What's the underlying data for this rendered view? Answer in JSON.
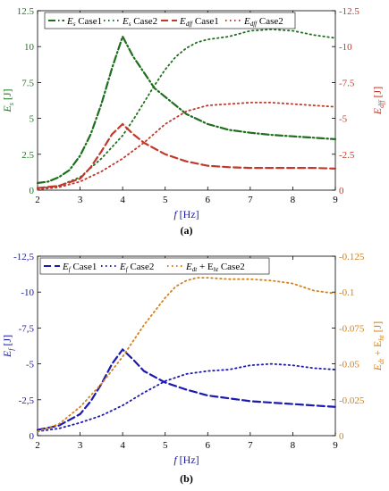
{
  "chart_data": [
    {
      "type": "line",
      "panel_label": "(a)",
      "xlabel": "f [Hz]",
      "xlabel_main": "f",
      "xlabel_unit": "[Hz]",
      "ylabel_left": "E_s [J]",
      "ylabel_left_main": "E",
      "ylabel_left_sub": "s",
      "ylabel_left_unit": "[J]",
      "ylabel_right": "E_dff [J]",
      "ylabel_right_main": "E",
      "ylabel_right_sub": "dff",
      "ylabel_right_unit": "[J]",
      "xlim": [
        2,
        9
      ],
      "ylim_left": [
        0,
        12.5
      ],
      "ylim_right": [
        0,
        -12.5
      ],
      "x_ticks": [
        2,
        3,
        4,
        5,
        6,
        7,
        8,
        9
      ],
      "x_tick_labels": [
        "2",
        "3",
        "4",
        "5",
        "6",
        "7",
        "8",
        "9"
      ],
      "y_left_ticks": [
        0,
        2.5,
        5,
        7.5,
        10,
        12.5
      ],
      "y_left_tick_labels": [
        "0",
        "2.5",
        "5",
        "7.5",
        "10",
        "12.5"
      ],
      "y_right_ticks": [
        0,
        -2.5,
        -5,
        -7.5,
        -10,
        -12.5
      ],
      "y_right_tick_labels": [
        "0",
        "-2.5",
        "-5",
        "-7.5",
        "-10",
        "-12.5"
      ],
      "left_axis_color": "#1a7a1a",
      "right_axis_color": "#c0392b",
      "legend_position": "top",
      "series": [
        {
          "name": "E_s Case1",
          "label_main": "E",
          "label_sub": "s",
          "label_rest": " Case1",
          "axis": "left",
          "color": "#1e6e1e",
          "dash": "dashdot",
          "x": [
            2,
            2.25,
            2.5,
            2.75,
            3,
            3.25,
            3.5,
            3.75,
            4,
            4.25,
            4.5,
            4.75,
            5,
            5.5,
            6,
            6.5,
            7,
            7.5,
            8,
            8.5,
            9
          ],
          "y": [
            0.5,
            0.6,
            0.9,
            1.4,
            2.4,
            3.9,
            6.0,
            8.5,
            10.7,
            9.3,
            8.2,
            7.1,
            6.5,
            5.3,
            4.6,
            4.2,
            4.0,
            3.85,
            3.75,
            3.65,
            3.55
          ]
        },
        {
          "name": "E_s Case2",
          "label_main": "E",
          "label_sub": "s",
          "label_rest": " Case2",
          "axis": "left",
          "color": "#1e6e1e",
          "dash": "dot",
          "x": [
            2,
            2.5,
            3,
            3.5,
            4,
            4.25,
            4.5,
            4.75,
            5,
            5.25,
            5.5,
            5.75,
            6,
            6.5,
            7,
            7.5,
            8,
            8.5,
            9
          ],
          "y": [
            0.1,
            0.3,
            0.9,
            2.2,
            3.8,
            4.9,
            6.1,
            7.3,
            8.4,
            9.3,
            9.9,
            10.3,
            10.5,
            10.7,
            11.1,
            11.2,
            11.1,
            10.8,
            10.6
          ]
        },
        {
          "name": "E_dff Case1",
          "label_main": "E",
          "label_sub": "dff",
          "label_rest": " Case1",
          "axis": "right",
          "color": "#c0392b",
          "dash": "dash",
          "x": [
            2,
            2.5,
            3,
            3.25,
            3.5,
            3.75,
            4,
            4.25,
            4.5,
            5,
            5.5,
            6,
            6.5,
            7,
            7.5,
            8,
            8.5,
            9
          ],
          "y": [
            -0.15,
            -0.3,
            -0.8,
            -1.6,
            -2.7,
            -3.9,
            -4.6,
            -3.9,
            -3.3,
            -2.5,
            -2.0,
            -1.7,
            -1.6,
            -1.55,
            -1.55,
            -1.55,
            -1.55,
            -1.5
          ]
        },
        {
          "name": "E_dff Case2",
          "label_main": "E",
          "label_sub": "dff",
          "label_rest": " Case2",
          "axis": "right",
          "color": "#c0392b",
          "dash": "dot",
          "x": [
            2,
            2.5,
            3,
            3.5,
            4,
            4.5,
            5,
            5.5,
            6,
            6.5,
            7,
            7.5,
            8,
            8.5,
            9
          ],
          "y": [
            -0.05,
            -0.2,
            -0.6,
            -1.3,
            -2.2,
            -3.3,
            -4.6,
            -5.5,
            -5.9,
            -6.0,
            -6.1,
            -6.1,
            -6.0,
            -5.9,
            -5.8
          ]
        }
      ]
    },
    {
      "type": "line",
      "panel_label": "(b)",
      "xlabel": "f [Hz]",
      "xlabel_main": "f",
      "xlabel_unit": "[Hz]",
      "ylabel_left": "E_f [J]",
      "ylabel_left_main": "E",
      "ylabel_left_sub": "f",
      "ylabel_left_unit": "[J]",
      "ylabel_right": "E_dt + E_ht [J]",
      "ylabel_right_main": "E",
      "ylabel_right_sub": "dt",
      "ylabel_right_mid": " + E",
      "ylabel_right_sub2": "ht",
      "ylabel_right_unit": "[J]",
      "xlim": [
        2,
        9
      ],
      "ylim_left": [
        0,
        -12.5
      ],
      "ylim_right": [
        0,
        -0.125
      ],
      "x_ticks": [
        2,
        3,
        4,
        5,
        6,
        7,
        8,
        9
      ],
      "x_tick_labels": [
        "2",
        "3",
        "4",
        "5",
        "6",
        "7",
        "8",
        "9"
      ],
      "y_left_ticks": [
        0,
        -2.5,
        -5,
        -7.5,
        -10,
        -12.5
      ],
      "y_left_tick_labels": [
        "0",
        "-2,5",
        "-5",
        "-7,5",
        "-10",
        "-12,5"
      ],
      "y_right_ticks": [
        0,
        -0.025,
        -0.05,
        -0.075,
        -0.1,
        -0.125
      ],
      "y_right_tick_labels": [
        "0",
        "-0.025",
        "-0.05",
        "-0.075",
        "-0.1",
        "-0.125"
      ],
      "left_axis_color": "#1a1aa6",
      "right_axis_color": "#d4801a",
      "legend_position": "top",
      "series": [
        {
          "name": "E_f Case1",
          "label_main": "E",
          "label_sub": "f",
          "label_rest": " Case1",
          "axis": "left",
          "color": "#1a1ab0",
          "dash": "dash",
          "x": [
            2,
            2.5,
            3,
            3.25,
            3.5,
            3.75,
            4,
            4.25,
            4.5,
            5,
            5.5,
            6,
            6.5,
            7,
            7.5,
            8,
            8.5,
            9
          ],
          "y": [
            -0.4,
            -0.7,
            -1.5,
            -2.4,
            -3.6,
            -5.0,
            -6.0,
            -5.3,
            -4.5,
            -3.7,
            -3.2,
            -2.8,
            -2.6,
            -2.4,
            -2.3,
            -2.2,
            -2.1,
            -2.0
          ]
        },
        {
          "name": "E_f Case2",
          "label_main": "E",
          "label_sub": "f",
          "label_rest": " Case2",
          "axis": "left",
          "color": "#1a1ab0",
          "dash": "dot",
          "x": [
            2,
            2.5,
            3,
            3.5,
            4,
            4.5,
            5,
            5.5,
            6,
            6.5,
            7,
            7.5,
            8,
            8.5,
            9
          ],
          "y": [
            -0.3,
            -0.5,
            -0.9,
            -1.4,
            -2.1,
            -3.0,
            -3.8,
            -4.3,
            -4.5,
            -4.6,
            -4.9,
            -5.0,
            -4.9,
            -4.7,
            -4.6
          ]
        },
        {
          "name": "E_dt + E_ht Case2",
          "label_main": "E",
          "label_sub": "dt",
          "label_mid": " + E",
          "label_sub2": "ht",
          "label_rest": " Case2",
          "axis": "right",
          "color": "#d4801a",
          "dash": "dot",
          "x": [
            2,
            2.5,
            3,
            3.5,
            4,
            4.5,
            5,
            5.25,
            5.5,
            5.75,
            6,
            6.5,
            7,
            7.5,
            8,
            8.5,
            9
          ],
          "y": [
            -0.003,
            -0.008,
            -0.02,
            -0.036,
            -0.055,
            -0.077,
            -0.096,
            -0.104,
            -0.108,
            -0.11,
            -0.11,
            -0.109,
            -0.109,
            -0.108,
            -0.106,
            -0.101,
            -0.099
          ]
        }
      ]
    }
  ]
}
